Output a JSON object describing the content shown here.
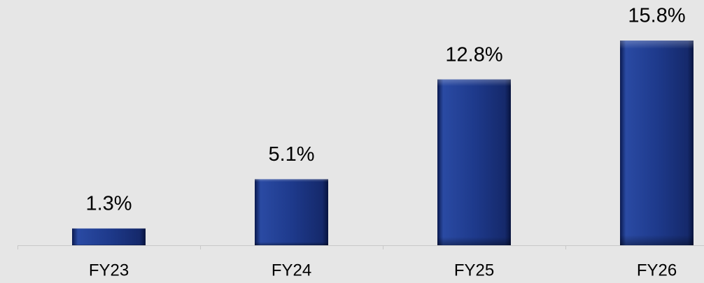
{
  "chart_data": {
    "type": "bar",
    "categories": [
      "FY23",
      "FY24",
      "FY25",
      "FY26"
    ],
    "values": [
      1.3,
      5.1,
      12.8,
      15.8
    ],
    "value_labels": [
      "1.3%",
      "5.1%",
      "12.8%",
      "15.8%"
    ],
    "color": "#1e3a8c",
    "grid": false
  }
}
